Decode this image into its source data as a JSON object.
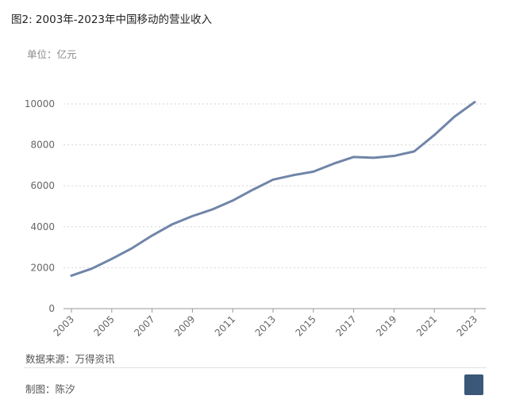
{
  "header": {
    "title": "图2: 2003年-2023年中国移动的营业收入",
    "unit_label": "单位：亿元"
  },
  "footer": {
    "source": "数据来源：万得资讯",
    "author": "制图：陈汐"
  },
  "colors": {
    "line": "#7085a8",
    "grid": "#d6d6d6",
    "axis_text": "#666666",
    "logo_bg": "#3b5878"
  },
  "chart_data": {
    "type": "line",
    "title": "",
    "xlabel": "",
    "ylabel": "",
    "x": [
      2003,
      2004,
      2005,
      2006,
      2007,
      2008,
      2009,
      2010,
      2011,
      2012,
      2013,
      2014,
      2015,
      2016,
      2017,
      2018,
      2019,
      2020,
      2021,
      2022,
      2023
    ],
    "series": [
      {
        "values": [
          1610,
          1950,
          2430,
          2950,
          3570,
          4120,
          4520,
          4850,
          5280,
          5810,
          6300,
          6520,
          6690,
          7080,
          7410,
          7370,
          7460,
          7680,
          8480,
          9380,
          10090
        ]
      }
    ],
    "ylim": [
      0,
      10000
    ],
    "yticks": [
      0,
      2000,
      4000,
      6000,
      8000,
      10000
    ],
    "xticks": [
      "2003",
      "2005",
      "2007",
      "2009",
      "2011",
      "2013",
      "2015",
      "2017",
      "2019",
      "2021",
      "2023"
    ],
    "grid": true,
    "legend": "none"
  }
}
